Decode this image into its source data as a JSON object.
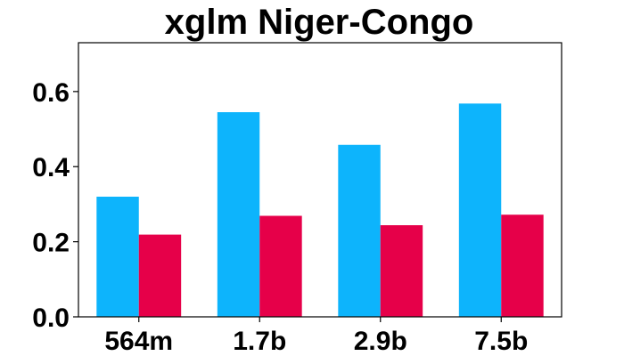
{
  "chart_data": {
    "type": "bar",
    "title": "xglm Niger-Congo",
    "xlabel": "",
    "ylabel": "",
    "categories": [
      "564m",
      "1.7b",
      "2.9b",
      "7.5b"
    ],
    "series": [
      {
        "values": [
          0.32,
          0.545,
          0.458,
          0.568
        ],
        "color": "#0db4fc"
      },
      {
        "values": [
          0.219,
          0.269,
          0.244,
          0.272
        ],
        "color": "#e60049"
      }
    ],
    "ylim": [
      0,
      0.73
    ],
    "yticks": [
      0.0,
      0.2,
      0.4,
      0.6
    ],
    "ytick_labels": [
      "0.0",
      "0.2",
      "0.4",
      "0.6"
    ],
    "grid": false,
    "legend": "none"
  }
}
